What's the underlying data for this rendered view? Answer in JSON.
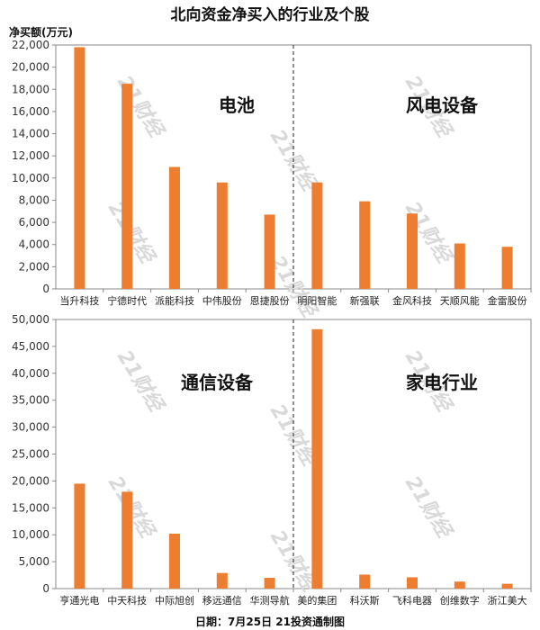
{
  "title": "北向资金净买入的行业及个股",
  "unit_label": "净买额(万元)",
  "footer": "日期：7月25日 21投资通制图",
  "watermark": "21财经",
  "colors": {
    "bar": "#ED7D31",
    "axis": "#888888",
    "grid": "#e6e6e6"
  },
  "chart_data": [
    {
      "type": "bar",
      "ylim": [
        0,
        22000
      ],
      "yticks": [
        "0",
        "2,000",
        "4,000",
        "6,000",
        "8,000",
        "10,000",
        "12,000",
        "14,000",
        "16,000",
        "18,000",
        "20,000",
        "22,000"
      ],
      "groups": [
        "电池",
        "风电设备"
      ],
      "categories": [
        "当升科技",
        "宁德时代",
        "派能科技",
        "中伟股份",
        "恩捷股份",
        "明阳智能",
        "新强联",
        "金风科技",
        "天顺风能",
        "金雷股份"
      ],
      "values": [
        21800,
        18500,
        11000,
        9600,
        6700,
        9600,
        7900,
        6800,
        4100,
        3800
      ]
    },
    {
      "type": "bar",
      "ylim": [
        0,
        50000
      ],
      "yticks": [
        "0",
        "5,000",
        "10,000",
        "15,000",
        "20,000",
        "25,000",
        "30,000",
        "35,000",
        "40,000",
        "45,000",
        "50,000"
      ],
      "groups": [
        "通信设备",
        "家电行业"
      ],
      "categories": [
        "亨通光电",
        "中天科技",
        "中际旭创",
        "移远通信",
        "华测导航",
        "美的集团",
        "科沃斯",
        "飞科电器",
        "创维数字",
        "浙江美大"
      ],
      "values": [
        19500,
        18000,
        10200,
        2900,
        2000,
        48200,
        2600,
        2100,
        1300,
        900
      ]
    }
  ]
}
